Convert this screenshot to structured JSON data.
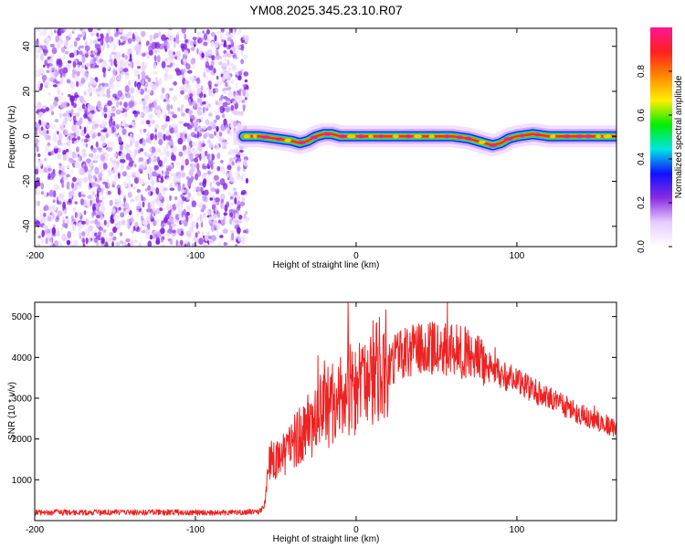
{
  "title": "YM08.2025.345.23.10.R07",
  "chart_data": [
    {
      "type": "heatmap",
      "name": "spectrogram",
      "xlabel": "Height of straight line (km)",
      "ylabel": "Frequency (Hz)",
      "xlim": [
        -200,
        162
      ],
      "ylim": [
        -49,
        48
      ],
      "xticks": [
        "-200",
        "-100",
        "0",
        "100"
      ],
      "xtick_values": [
        -200,
        -100,
        0,
        100
      ],
      "yticks": [
        "40",
        "20",
        "0",
        "-20",
        "-40"
      ],
      "ytick_values": [
        40,
        20,
        0,
        -20,
        -40
      ],
      "noise_region_km": [
        -200,
        -70
      ],
      "signal_region_km": [
        -70,
        162
      ],
      "signal_ridge": {
        "x": [
          -70,
          -60,
          -50,
          -40,
          -35,
          -30,
          -25,
          -20,
          -15,
          -10,
          -5,
          0,
          20,
          40,
          60,
          70,
          75,
          80,
          85,
          90,
          95,
          100,
          110,
          120,
          130,
          140,
          150,
          162
        ],
        "y": [
          0,
          0,
          -1,
          -2,
          -3,
          -2,
          0,
          1,
          1,
          0,
          0,
          0,
          0,
          0,
          0,
          -1,
          -2,
          -3,
          -4,
          -3,
          -1,
          0,
          1,
          0,
          0,
          0,
          0,
          0
        ]
      },
      "colorbar": {
        "label": "Normalized spectral amplitude",
        "range": [
          0.0,
          1.0
        ],
        "ticks": [
          "0.0",
          "0.2",
          "0.4",
          "0.6",
          "0.8"
        ],
        "tick_values": [
          0.0,
          0.2,
          0.4,
          0.6,
          0.8
        ],
        "colors": [
          "#ffffff",
          "#e6ccff",
          "#8a2be2",
          "#1010ff",
          "#00e5e5",
          "#00ee00",
          "#ffee00",
          "#ff8800",
          "#ff2020",
          "#ff1493"
        ]
      }
    },
    {
      "type": "line",
      "name": "snr",
      "xlabel": "Height of straight line (km)",
      "ylabel": "SNR (10 * v/v)",
      "xlim": [
        -200,
        162
      ],
      "ylim": [
        0,
        5350
      ],
      "xticks": [
        "-200",
        "-100",
        "0",
        "100"
      ],
      "xtick_values": [
        -200,
        -100,
        0,
        100
      ],
      "yticks": [
        "1000",
        "2000",
        "3000",
        "4000",
        "5000"
      ],
      "ytick_values": [
        1000,
        2000,
        3000,
        4000,
        5000
      ],
      "series": [
        {
          "name": "SNR",
          "color": "#ee2222",
          "x": [
            -200,
            -150,
            -100,
            -70,
            -60,
            -57,
            -55,
            -50,
            -45,
            -40,
            -35,
            -30,
            -25,
            -20,
            -15,
            -10,
            -5,
            0,
            5,
            10,
            15,
            20,
            25,
            30,
            35,
            40,
            45,
            50,
            55,
            60,
            65,
            70,
            75,
            80,
            85,
            90,
            95,
            100,
            110,
            120,
            130,
            140,
            150,
            162
          ],
          "y": [
            200,
            200,
            200,
            200,
            230,
            350,
            1400,
            1500,
            1700,
            1900,
            2100,
            2300,
            2550,
            2700,
            2850,
            3000,
            3150,
            3300,
            3450,
            3600,
            3750,
            3900,
            4000,
            4080,
            4150,
            4180,
            4200,
            4220,
            4230,
            4220,
            4150,
            4050,
            3950,
            3850,
            3700,
            3600,
            3500,
            3400,
            3200,
            3000,
            2800,
            2600,
            2450,
            2250
          ]
        }
      ]
    }
  ]
}
